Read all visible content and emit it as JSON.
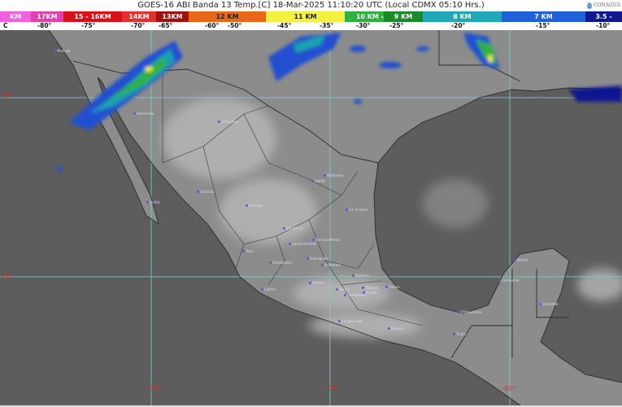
{
  "header": {
    "title": "GOES-16 ABI Banda 13 Temp.[C] 18-Mar-2025 11:10:20 UTC (Local CDMX  05:10 Hrs.)",
    "logo_text": "CONAGUA"
  },
  "colorbar": {
    "segments": [
      {
        "label": "KM",
        "color": "#f060e0"
      },
      {
        "label": "17KM",
        "color": "#e040b0"
      },
      {
        "label": "15 - 16KM",
        "color": "#d8101c"
      },
      {
        "label": "14KM",
        "color": "#e03030"
      },
      {
        "label": "13KM",
        "color": "#a01010"
      },
      {
        "label": "12 KM",
        "color": "#e86818"
      },
      {
        "label": "11 KM",
        "color": "#f4f040"
      },
      {
        "label": "10 KM -",
        "color": "#30b040"
      },
      {
        "label": "9 KM",
        "color": "#1a8a2a"
      },
      {
        "label": "8 KM",
        "color": "#20a8b8"
      },
      {
        "label": "7 KM",
        "color": "#2060d8"
      },
      {
        "label": "3.5 -",
        "color": "#101890"
      }
    ],
    "temps": [
      "C",
      "-80°",
      "-75°",
      "-70°",
      "-65°",
      "-60°",
      "-50°",
      "-45°",
      "-35°",
      "-30°",
      "-25°",
      "-20°",
      "-15°",
      "-10°"
    ]
  },
  "map": {
    "lat_labels": [
      "30°",
      "20°"
    ],
    "lon_labels": [
      "-110°",
      "-100°",
      "-90°"
    ],
    "colors": {
      "ocean": "#5d5d5d",
      "land": "#8a8a8a",
      "grid": "#7fd0d0",
      "border": "#2a2a2a"
    },
    "cities": [
      "Mexicali",
      "Hermosillo",
      "Chihuahua",
      "La Paz",
      "Culiacán",
      "Durango",
      "Saltillo",
      "Monterrey",
      "Cd. Victoria",
      "Zacatecas",
      "San Luis Potosí",
      "Aguascalientes",
      "Tepic",
      "Guadalajara",
      "Guanajuato",
      "Querétaro",
      "Colima",
      "Morelia",
      "Toluca",
      "Pachuca",
      "Tlaxcala",
      "Puebla",
      "Cuernavaca",
      "Xalapa",
      "Chilpancingo",
      "Oaxaca",
      "Villahermosa",
      "Tuxtla",
      "Campeche",
      "Mérida",
      "Chetumal"
    ]
  }
}
